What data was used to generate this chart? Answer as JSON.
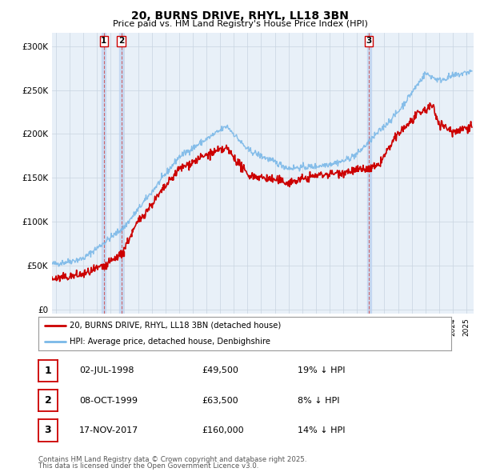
{
  "title": "20, BURNS DRIVE, RHYL, LL18 3BN",
  "subtitle": "Price paid vs. HM Land Registry's House Price Index (HPI)",
  "ylabel_ticks": [
    "£0",
    "£50K",
    "£100K",
    "£150K",
    "£200K",
    "£250K",
    "£300K"
  ],
  "ytick_values": [
    0,
    50000,
    100000,
    150000,
    200000,
    250000,
    300000
  ],
  "ylim": [
    -5000,
    315000
  ],
  "xlim_start": 1994.7,
  "xlim_end": 2025.5,
  "hpi_color": "#7ab8e8",
  "price_color": "#cc0000",
  "background_color": "#e8f0f8",
  "grid_color": "#c8d4e0",
  "legend_label_price": "20, BURNS DRIVE, RHYL, LL18 3BN (detached house)",
  "legend_label_hpi": "HPI: Average price, detached house, Denbighshire",
  "transactions": [
    {
      "label": "1",
      "date": 1998.5,
      "price": 49500,
      "text_date": "02-JUL-1998",
      "text_price": "£49,500",
      "text_hpi": "19% ↓ HPI"
    },
    {
      "label": "2",
      "date": 1999.77,
      "price": 63500,
      "text_date": "08-OCT-1999",
      "text_price": "£63,500",
      "text_hpi": "8% ↓ HPI"
    },
    {
      "label": "3",
      "date": 2017.88,
      "price": 160000,
      "text_date": "17-NOV-2017",
      "text_price": "£160,000",
      "text_hpi": "14% ↓ HPI"
    }
  ],
  "footer_line1": "Contains HM Land Registry data © Crown copyright and database right 2025.",
  "footer_line2": "This data is licensed under the Open Government Licence v3.0."
}
